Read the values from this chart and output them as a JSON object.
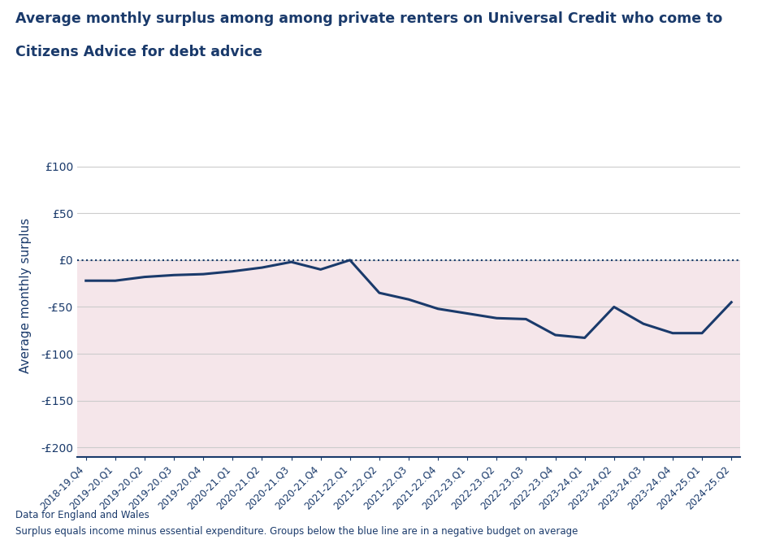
{
  "title_line1": "Average monthly surplus among among private renters on Universal Credit who come to",
  "title_line2": "Citizens Advice for debt advice",
  "ylabel": "Average monthly surplus",
  "footnote1": "Data for England and Wales",
  "footnote2": "Surplus equals income minus essential expenditure. Groups below the blue line are in a negative budget on average",
  "line_color": "#1a3a6b",
  "fill_color_negative": "#f5e6ea",
  "zero_line_color": "#1a3a6b",
  "title_color": "#1a3a6b",
  "ylabel_color": "#1a3a6b",
  "tick_color": "#1a3a6b",
  "grid_color": "#cccccc",
  "background_color": "#ffffff",
  "ylim": [
    -210,
    135
  ],
  "yticks": [
    -200,
    -150,
    -100,
    -50,
    0,
    50,
    100
  ],
  "ytick_labels": [
    "-£200",
    "-£150",
    "-£100",
    "-£50",
    "£0",
    "£50",
    "£100"
  ],
  "categories": [
    "2018-19.Q4",
    "2019-20.Q1",
    "2019-20.Q2",
    "2019-20.Q3",
    "2019-20.Q4",
    "2020-21.Q1",
    "2020-21.Q2",
    "2020-21.Q3",
    "2020-21.Q4",
    "2021-22.Q1",
    "2021-22.Q2",
    "2021-22.Q3",
    "2021-22.Q4",
    "2022-23.Q1",
    "2022-23.Q2",
    "2022-23.Q3",
    "2022-23.Q4",
    "2023-24.Q1",
    "2023-24.Q2",
    "2023-24.Q3",
    "2023-24.Q4",
    "2024-25.Q1",
    "2024-25.Q2"
  ],
  "values": [
    -22,
    -22,
    -18,
    -16,
    -15,
    -12,
    -8,
    -2,
    -10,
    0,
    -35,
    -42,
    -52,
    -57,
    -62,
    -63,
    -80,
    -83,
    -50,
    -68,
    -78,
    -78,
    -45
  ]
}
